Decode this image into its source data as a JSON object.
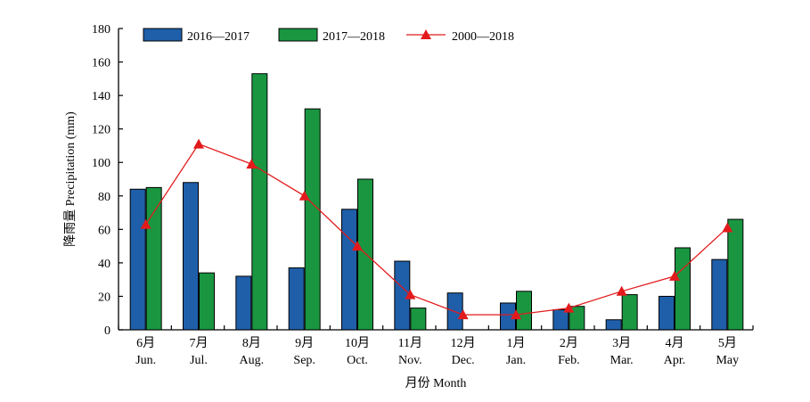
{
  "chart_data": {
    "type": "bar",
    "categories_cn": [
      "6月",
      "7月",
      "8月",
      "9月",
      "10月",
      "11月",
      "12月",
      "1月",
      "2月",
      "3月",
      "4月",
      "5月"
    ],
    "categories_en": [
      "Jun.",
      "Jul.",
      "Aug.",
      "Sep.",
      "Oct.",
      "Nov.",
      "Dec.",
      "Jan.",
      "Feb.",
      "Mar.",
      "Apr.",
      "May"
    ],
    "series": [
      {
        "name": "2016—2017",
        "type": "bar",
        "color": "#1f5faa",
        "values": [
          84,
          88,
          32,
          37,
          72,
          41,
          22,
          16,
          12,
          6,
          20,
          42
        ]
      },
      {
        "name": "2017—2018",
        "type": "bar",
        "color": "#1a9641",
        "values": [
          85,
          34,
          153,
          132,
          90,
          13,
          0,
          23,
          14,
          21,
          49,
          66
        ]
      },
      {
        "name": "2000—2018",
        "type": "line",
        "marker": "triangle",
        "color": "#e31a1c",
        "values": [
          63,
          111,
          99,
          80,
          50,
          21,
          9,
          9,
          13,
          23,
          32,
          61
        ]
      }
    ],
    "xlabel": "月份 Month",
    "ylabel": "降雨量 Precipitation (mm)",
    "ylim": [
      0,
      180
    ],
    "yticks": [
      0,
      20,
      40,
      60,
      80,
      100,
      120,
      140,
      160,
      180
    ],
    "legend_position": "top-left",
    "grid": false
  }
}
